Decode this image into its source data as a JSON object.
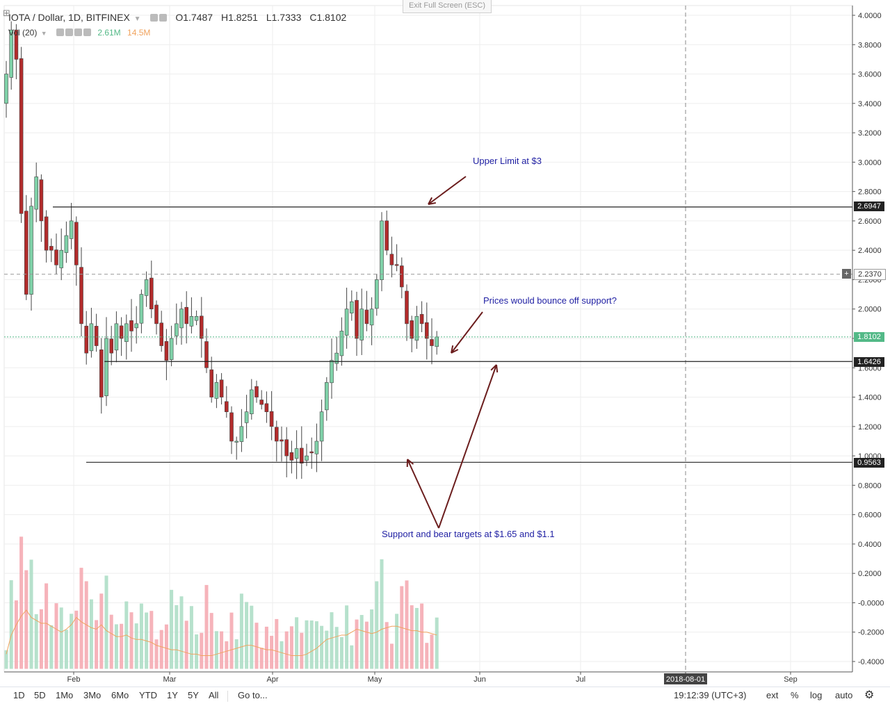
{
  "header": {
    "symbol": "IOTA / Dollar, 1D, BITFINEX",
    "o_label": "O",
    "o_value": "1.7487",
    "h_label": "H",
    "h_value": "1.8251",
    "l_label": "L",
    "l_value": "1.7333",
    "c_label": "C",
    "c_value": "1.8102",
    "vol_label": "Vol (20)",
    "vol_value_1": "2.61M",
    "vol_value_2": "14.5M"
  },
  "exit_fullscreen": "Exit Full Screen (ESC)",
  "toolbar": {
    "ranges": [
      "1D",
      "5D",
      "1Mo",
      "3Mo",
      "6Mo",
      "YTD",
      "1Y",
      "5Y",
      "All"
    ],
    "goto": "Go to...",
    "clock": "19:12:39 (UTC+3)",
    "ext": "ext",
    "percent": "%",
    "log": "log",
    "auto": "auto"
  },
  "colors": {
    "up": "#53b987",
    "down": "#eb4d5c",
    "vol_up": "#a9dcc3",
    "vol_down": "#f5a6ae",
    "annotation": "#1f1fa3",
    "arrow": "#6b1d1d",
    "ma": "#f0a35e",
    "close_line": "#53b987"
  },
  "chart_data": {
    "type": "candlestick",
    "y_axis_ticks": [
      "4.0000",
      "3.8000",
      "3.6000",
      "3.4000",
      "3.2000",
      "3.0000",
      "2.8000",
      "2.6000",
      "2.4000",
      "2.2000",
      "2.0000",
      "1.8000",
      "1.6000",
      "1.4000",
      "1.2000",
      "1.0000",
      "0.8000",
      "0.6000",
      "0.4000",
      "0.2000",
      "-0.0000",
      "-0.2000",
      "-0.4000"
    ],
    "x_axis_ticks": [
      "Feb",
      "Mar",
      "Apr",
      "May",
      "Jun",
      "Jul",
      "2018-08-01",
      "Sep"
    ],
    "ylim": [
      -0.45,
      4.05
    ],
    "horizontal_levels": [
      {
        "label": "2.6947",
        "value": 2.6947
      },
      {
        "label": "1.6426",
        "value": 1.6426
      },
      {
        "label": "0.9563",
        "value": 0.9563
      }
    ],
    "crosshair_level": {
      "label": "2.2370",
      "value": 2.237
    },
    "last_price": {
      "label": "1.8102",
      "value": 1.8102
    },
    "annotations": [
      "Upper Limit at $3",
      "Prices would bounce off support?",
      "Support and bear targets at $1.65 and $1.1"
    ],
    "closes": [
      3.6,
      3.9,
      3.7,
      2.65,
      2.1,
      2.7,
      2.9,
      2.6,
      2.4,
      2.4,
      2.3,
      2.4,
      2.5,
      2.6,
      2.3,
      1.9,
      1.7,
      1.9,
      1.75,
      1.4,
      1.8,
      1.7,
      1.9,
      1.8,
      1.9,
      1.85,
      1.9,
      2.1,
      2.2,
      2.0,
      1.9,
      1.75,
      1.65,
      1.8,
      1.9,
      2.0,
      1.9,
      1.95,
      1.95,
      1.8,
      1.6,
      1.4,
      1.5,
      1.4,
      1.3,
      1.1,
      1.1,
      1.2,
      1.3,
      1.45,
      1.4,
      1.35,
      1.3,
      1.2,
      1.1,
      1.1,
      1.0,
      0.97,
      1.05,
      0.95,
      1.0,
      1.02,
      1.1,
      1.3,
      1.5,
      1.65,
      1.7,
      1.85,
      2.0,
      2.05,
      1.8,
      2.0,
      1.9,
      2.0,
      2.2,
      2.6,
      2.4,
      2.3,
      2.3,
      2.15,
      1.9,
      1.8,
      1.95,
      1.9,
      1.8,
      1.75,
      1.81
    ],
    "volumes": [
      0.05,
      0.18,
      0.25,
      0.31,
      0.35,
      0.3,
      0.28,
      0.26,
      0.26,
      0.24,
      0.22,
      0.2,
      0.22,
      0.25,
      0.3,
      0.27,
      0.25,
      0.23,
      0.22,
      0.25,
      0.21,
      0.19,
      0.17,
      0.17,
      0.18,
      0.16,
      0.15,
      0.15,
      0.14,
      0.13,
      0.11,
      0.1,
      0.09,
      0.08,
      0.08,
      0.07,
      0.06,
      0.05,
      0.05,
      0.04,
      0.04,
      0.04,
      0.05,
      0.06,
      0.07,
      0.08,
      0.09,
      0.1,
      0.11,
      0.11,
      0.1,
      0.09,
      0.08,
      0.08,
      0.07,
      0.06,
      0.05,
      0.04,
      0.04,
      0.04,
      0.05,
      0.07,
      0.09,
      0.12,
      0.15,
      0.16,
      0.17,
      0.18,
      0.18,
      0.2,
      0.22,
      0.21,
      0.2,
      0.19,
      0.2,
      0.22,
      0.23,
      0.24,
      0.24,
      0.23,
      0.22,
      0.21,
      0.21,
      0.2,
      0.2,
      0.19,
      0.18
    ]
  }
}
